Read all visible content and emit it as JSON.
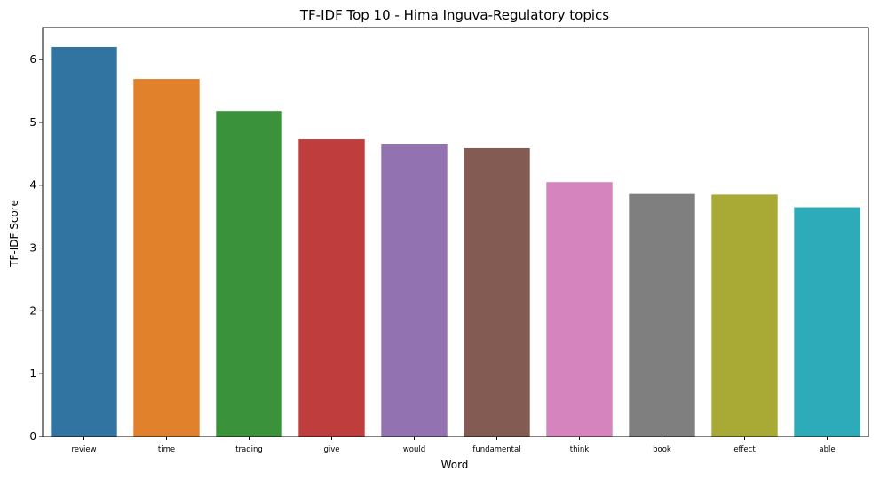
{
  "chart_data": {
    "type": "bar",
    "title": "TF-IDF Top 10 - Hima Inguva-Regulatory topics",
    "xlabel": "Word",
    "ylabel": "TF-IDF Score",
    "categories": [
      "review",
      "time",
      "trading",
      "give",
      "would",
      "fundamental",
      "think",
      "book",
      "effect",
      "able"
    ],
    "values": [
      6.2,
      5.69,
      5.18,
      4.73,
      4.66,
      4.59,
      4.05,
      3.86,
      3.85,
      3.65
    ],
    "colors": [
      "#3274a1",
      "#e1812c",
      "#3a923a",
      "#c03d3e",
      "#9372b2",
      "#845b53",
      "#d684bd",
      "#7f7f7f",
      "#a9aa35",
      "#2eabb8"
    ],
    "yticks": [
      0,
      1,
      2,
      3,
      4,
      5,
      6
    ],
    "ylim": [
      0,
      6.51
    ],
    "grid": false,
    "legend": "none"
  }
}
